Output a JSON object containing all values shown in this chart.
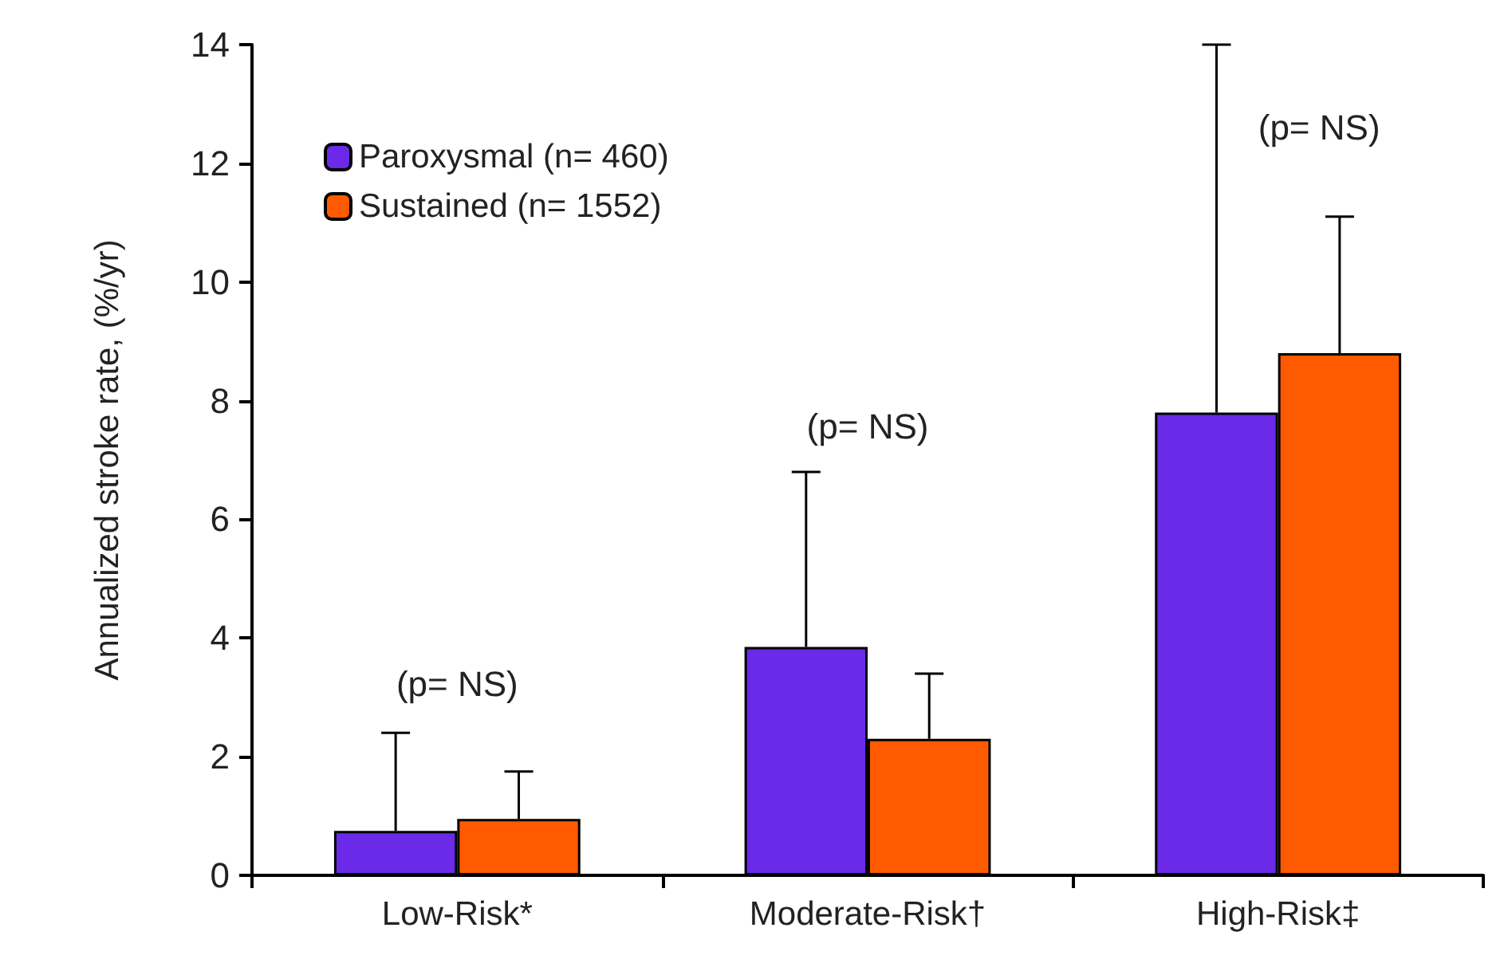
{
  "chart_data": {
    "type": "bar",
    "ylabel": "Annualized stroke rate, (%/yr)",
    "categories": [
      "Low-Risk*",
      "Moderate-Risk†",
      "High-Risk‡"
    ],
    "series": [
      {
        "name": "Paroxysmal (n= 460)",
        "color": "#6a2ae8",
        "values": [
          0.75,
          3.85,
          7.8
        ],
        "errors": [
          [
            0.75,
            2.4
          ],
          [
            3.85,
            6.8
          ],
          [
            7.8,
            14
          ]
        ]
      },
      {
        "name": "Sustained (n= 1552)",
        "color": "#ff5a00",
        "values": [
          0.95,
          2.3,
          8.8
        ],
        "errors": [
          [
            0.95,
            1.75
          ],
          [
            2.3,
            3.4
          ],
          [
            8.8,
            11.1
          ]
        ]
      }
    ],
    "annotations": [
      "(p= NS)",
      "(p= NS)",
      "(p= NS)"
    ],
    "ylim": [
      0,
      14
    ],
    "yticks": [
      0,
      2,
      4,
      6,
      8,
      10,
      12,
      14
    ],
    "grid": false,
    "legend": "top left"
  }
}
